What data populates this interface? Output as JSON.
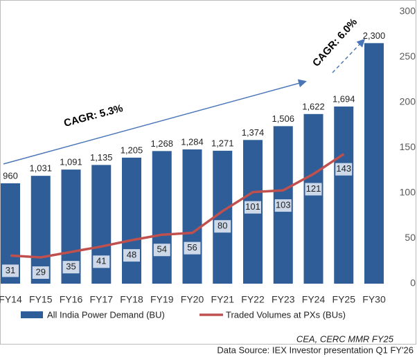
{
  "chart_data": {
    "type": "bar",
    "categories": [
      "FY14",
      "FY15",
      "FY16",
      "FY17",
      "FY18",
      "FY19",
      "FY20",
      "FY21",
      "FY22",
      "FY23",
      "FY24",
      "FY25",
      "FY30"
    ],
    "series": [
      {
        "name": "All India Power Demand (BU)",
        "type": "bar",
        "color": "#2e5d98",
        "values": [
          960,
          1031,
          1091,
          1135,
          1205,
          1268,
          1284,
          1271,
          1374,
          1506,
          1622,
          1694,
          2300
        ],
        "value_labels": [
          "960",
          "1,031",
          "1,091",
          "1,135",
          "1,205",
          "1,268",
          "1,284",
          "1,271",
          "1,374",
          "1,506",
          "1,622",
          "1,694",
          "2,300"
        ]
      },
      {
        "name": "Traded Volumes at PXs (BUs)",
        "type": "line",
        "axis": "y2",
        "color": "#c0504d",
        "values": [
          31,
          29,
          35,
          41,
          48,
          54,
          56,
          80,
          101,
          103,
          121,
          143,
          null
        ]
      }
    ],
    "ylim": [
      0,
      2600
    ],
    "y2lim": [
      0,
      300
    ],
    "y2ticks": [
      0,
      50,
      100,
      150,
      200,
      250,
      300
    ],
    "annotations": [
      "CAGR: 5.3%",
      "CAGR: 6.0%"
    ],
    "source_notes": [
      "CEA, CERC MMR FY25",
      "Data Source: IEX Investor presentation Q1 FY'26"
    ]
  }
}
